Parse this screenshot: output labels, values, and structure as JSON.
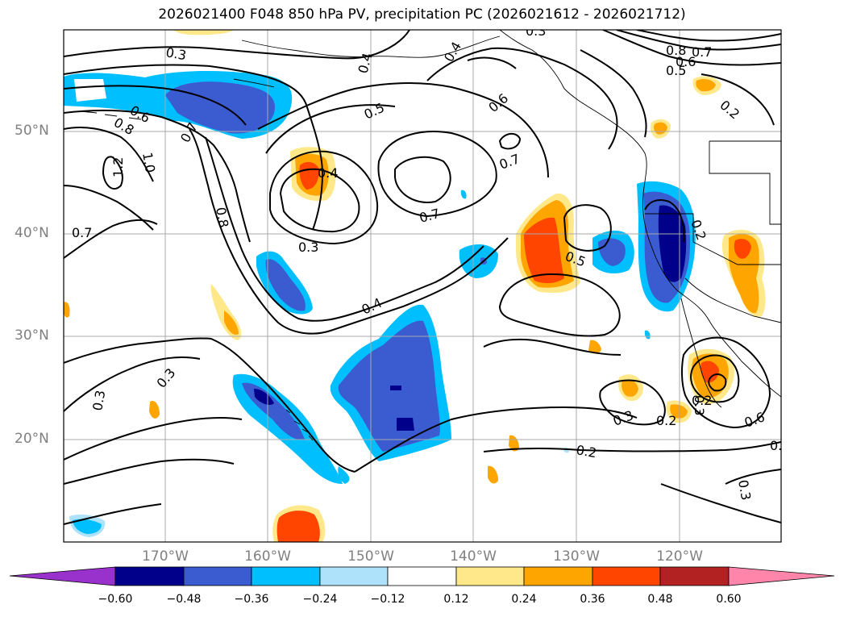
{
  "title": "2026021400 F048 850 hPa PV, precipitation PC (2026021612 - 2026021712)",
  "axes": {
    "lat_labels": [
      "50°N",
      "40°N",
      "30°N",
      "20°N"
    ],
    "lon_labels": [
      "170°W",
      "160°W",
      "150°W",
      "140°W",
      "130°W",
      "120°W"
    ]
  },
  "colorbar": {
    "ticks": [
      "−0.60",
      "−0.48",
      "−0.36",
      "−0.24",
      "−0.12",
      "0.12",
      "0.24",
      "0.36",
      "0.48",
      "0.60"
    ],
    "colors": [
      "#9932cc",
      "#00008b",
      "#3b5bd0",
      "#00bfff",
      "#aee2fb",
      "#ffffff",
      "#ffe88a",
      "#ffa500",
      "#ff4500",
      "#b22222",
      "#ff86aa"
    ]
  },
  "contour_labels": [
    "0.3",
    "0.4",
    "0.4",
    "0.5",
    "0.6",
    "0.7",
    "0.3",
    "0.8",
    "0.6",
    "0.5",
    "0.7",
    "0.6",
    "0.8",
    "0.7",
    "1.2",
    "1.0",
    "0.7",
    "0.4",
    "0.3",
    "0.8",
    "0.7",
    "0.5",
    "0.4",
    "0.3",
    "0.3",
    "0.2",
    "0.2",
    "0.2",
    "0.3",
    "0.2",
    "0.3",
    "0.6",
    "0.3",
    "0.2",
    "0.2"
  ]
}
